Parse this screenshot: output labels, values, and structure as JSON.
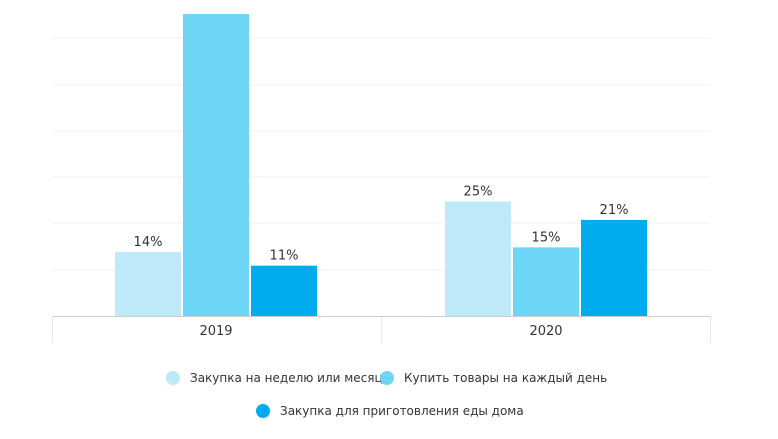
{
  "chart_data": {
    "type": "bar",
    "categories": [
      "2019",
      "2020"
    ],
    "series": [
      {
        "name": "Закупка на неделю или месяц",
        "color": "#bde9f9",
        "values": [
          14,
          25
        ],
        "labels": [
          "14%",
          "25%"
        ]
      },
      {
        "name": "Купить товары на каждый день",
        "color": "#6dd6f7",
        "values": [
          66,
          15
        ],
        "labels": [
          "",
          "15%"
        ]
      },
      {
        "name": "Закупка для приготовления еды дома",
        "color": "#00aced",
        "values": [
          11,
          21
        ],
        "labels": [
          "11%",
          "21%"
        ]
      }
    ],
    "ylim": [
      0,
      66
    ],
    "grid": true,
    "legend_position": "bottom"
  }
}
